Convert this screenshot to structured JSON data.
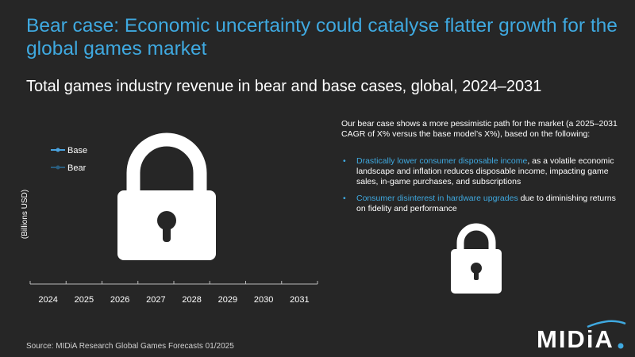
{
  "title": "Bear case: Economic uncertainty could catalyse flatter growth for the global games market",
  "subtitle": "Total games industry revenue in bear and base cases, global, 2024–2031",
  "chart": {
    "y_axis_label": "(Billions USD)",
    "legend": [
      {
        "name": "Base",
        "color": "#4aa3df"
      },
      {
        "name": "Bear",
        "color": "#2a5d7e"
      }
    ],
    "categories": [
      "2024",
      "2025",
      "2026",
      "2027",
      "2028",
      "2029",
      "2030",
      "2031"
    ]
  },
  "body": {
    "intro": "Our bear case shows a more pessimistic path for the market (a 2025–2031 CAGR of X% versus the base model’s X%), based on the following:",
    "bullets": [
      {
        "highlight": "Drastically lower consumer disposable income",
        "text": ", as a volatile economic landscape and inflation reduces disposable income, impacting game sales, in-game purchases, and subscriptions"
      },
      {
        "highlight": "Consumer disinterest in hardware upgrades",
        "text": " due to diminishing returns on fidelity and performance"
      }
    ]
  },
  "source": "Source: MIDiA Research Global Games Forecasts 01/2025",
  "logo": "MIDiA"
}
